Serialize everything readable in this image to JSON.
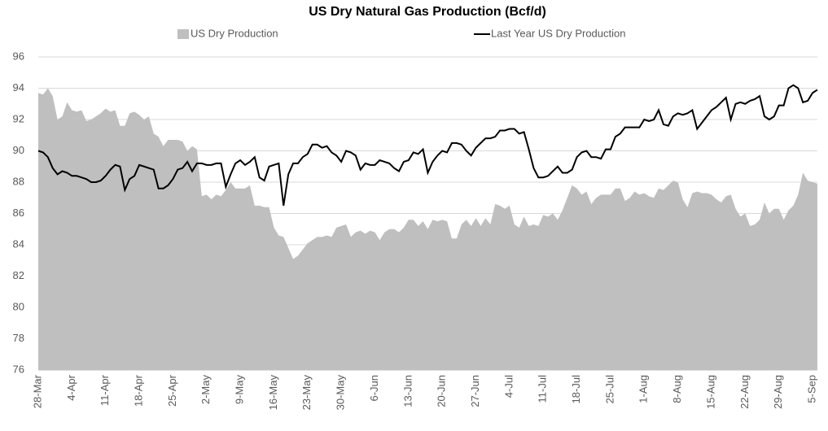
{
  "chart_data": {
    "type": "area-line",
    "title": "US Dry Natural Gas Production (Bcf/d)",
    "categories": [
      "28-Mar",
      null,
      null,
      null,
      null,
      null,
      null,
      "4-Apr",
      null,
      null,
      null,
      null,
      null,
      null,
      "11-Apr",
      null,
      null,
      null,
      null,
      null,
      null,
      "18-Apr",
      null,
      null,
      null,
      null,
      null,
      null,
      "25-Apr",
      null,
      null,
      null,
      null,
      null,
      null,
      "2-May",
      null,
      null,
      null,
      null,
      null,
      null,
      "9-May",
      null,
      null,
      null,
      null,
      null,
      null,
      "16-May",
      null,
      null,
      null,
      null,
      null,
      null,
      "23-May",
      null,
      null,
      null,
      null,
      null,
      null,
      "30-May",
      null,
      null,
      null,
      null,
      null,
      null,
      "6-Jun",
      null,
      null,
      null,
      null,
      null,
      null,
      "13-Jun",
      null,
      null,
      null,
      null,
      null,
      null,
      "20-Jun",
      null,
      null,
      null,
      null,
      null,
      null,
      "27-Jun",
      null,
      null,
      null,
      null,
      null,
      null,
      "4-Jul",
      null,
      null,
      null,
      null,
      null,
      null,
      "11-Jul",
      null,
      null,
      null,
      null,
      null,
      null,
      "18-Jul",
      null,
      null,
      null,
      null,
      null,
      null,
      "25-Jul",
      null,
      null,
      null,
      null,
      null,
      null,
      "1-Aug",
      null,
      null,
      null,
      null,
      null,
      null,
      "8-Aug",
      null,
      null,
      null,
      null,
      null,
      null,
      "15-Aug",
      null,
      null,
      null,
      null,
      null,
      null,
      "22-Aug",
      null,
      null,
      null,
      null,
      null,
      null,
      "29-Aug",
      null,
      null,
      null,
      null,
      null,
      null,
      "5-Sep",
      null
    ],
    "series": [
      {
        "name": "US Dry Production",
        "kind": "area",
        "color": "#bfbfbf",
        "values": [
          93.7,
          93.6,
          94.0,
          93.5,
          92.0,
          92.2,
          93.1,
          92.6,
          92.5,
          92.6,
          91.9,
          92.0,
          92.2,
          92.4,
          92.7,
          92.5,
          92.6,
          91.6,
          91.6,
          92.4,
          92.5,
          92.3,
          92.0,
          92.2,
          91.1,
          90.9,
          90.3,
          90.7,
          90.7,
          90.7,
          90.6,
          90.0,
          90.3,
          90.1,
          87.1,
          87.2,
          86.9,
          87.2,
          87.1,
          87.5,
          88.0,
          87.6,
          87.6,
          87.6,
          87.8,
          86.5,
          86.5,
          86.4,
          86.4,
          85.1,
          84.6,
          84.5,
          83.8,
          83.1,
          83.3,
          83.7,
          84.1,
          84.3,
          84.5,
          84.5,
          84.6,
          84.5,
          85.1,
          85.2,
          85.3,
          84.5,
          84.8,
          84.9,
          84.7,
          84.9,
          84.8,
          84.3,
          84.8,
          85.0,
          85.0,
          84.8,
          85.1,
          85.6,
          85.6,
          85.2,
          85.5,
          85.0,
          85.6,
          85.5,
          85.6,
          85.5,
          84.4,
          84.4,
          85.3,
          85.6,
          85.2,
          85.7,
          85.2,
          85.7,
          85.3,
          86.6,
          86.5,
          86.3,
          86.5,
          85.3,
          85.1,
          85.8,
          85.2,
          85.3,
          85.2,
          85.9,
          85.8,
          86.0,
          85.6,
          86.2,
          87.0,
          87.8,
          87.6,
          87.2,
          87.4,
          86.6,
          87.0,
          87.2,
          87.2,
          87.2,
          87.6,
          87.6,
          86.8,
          87.0,
          87.4,
          87.2,
          87.3,
          87.1,
          87.0,
          87.6,
          87.5,
          87.8,
          88.1,
          88.0,
          86.9,
          86.4,
          87.3,
          87.4,
          87.3,
          87.3,
          87.2,
          86.9,
          86.7,
          87.1,
          87.2,
          86.3,
          85.8,
          86.0,
          85.2,
          85.3,
          85.6,
          86.7,
          86.0,
          86.3,
          86.3,
          85.6,
          86.2,
          86.5,
          87.2,
          88.6,
          88.1,
          88.0,
          87.9
        ]
      },
      {
        "name": "Last Year US Dry Production",
        "kind": "line",
        "color": "#000000",
        "values": [
          90.0,
          89.9,
          89.6,
          88.9,
          88.5,
          88.7,
          88.6,
          88.4,
          88.4,
          88.3,
          88.2,
          88.0,
          88.0,
          88.1,
          88.4,
          88.8,
          89.1,
          89.0,
          87.5,
          88.2,
          88.4,
          89.1,
          89.0,
          88.9,
          88.8,
          87.6,
          87.6,
          87.8,
          88.2,
          88.8,
          88.9,
          89.3,
          88.7,
          89.2,
          89.2,
          89.1,
          89.1,
          89.2,
          89.2,
          87.7,
          88.5,
          89.2,
          89.4,
          89.1,
          89.3,
          89.6,
          88.3,
          88.1,
          89.0,
          89.1,
          89.2,
          86.5,
          88.5,
          89.2,
          89.2,
          89.6,
          89.8,
          90.4,
          90.4,
          90.2,
          90.3,
          89.9,
          89.7,
          89.3,
          90.0,
          89.9,
          89.7,
          88.8,
          89.2,
          89.1,
          89.1,
          89.4,
          89.3,
          89.2,
          88.9,
          88.7,
          89.3,
          89.4,
          89.9,
          89.8,
          90.1,
          88.6,
          89.3,
          89.7,
          90.0,
          89.9,
          90.5,
          90.5,
          90.4,
          90.0,
          89.7,
          90.2,
          90.5,
          90.8,
          90.8,
          90.9,
          91.3,
          91.3,
          91.4,
          91.4,
          91.1,
          91.2,
          90.1,
          88.9,
          88.3,
          88.3,
          88.4,
          88.7,
          89.0,
          88.6,
          88.6,
          88.8,
          89.6,
          89.9,
          90.0,
          89.6,
          89.6,
          89.5,
          90.1,
          90.1,
          90.9,
          91.1,
          91.5,
          91.5,
          91.5,
          91.5,
          92.0,
          91.9,
          92.0,
          92.6,
          91.7,
          91.6,
          92.2,
          92.4,
          92.3,
          92.4,
          92.6,
          91.4,
          91.8,
          92.2,
          92.6,
          92.8,
          93.1,
          93.4,
          92.0,
          93.0,
          93.1,
          93.0,
          93.2,
          93.3,
          93.5,
          92.2,
          92.0,
          92.2,
          92.9,
          92.9,
          94.0,
          94.2,
          94.0,
          93.1,
          93.2,
          93.7,
          93.9
        ]
      }
    ],
    "ylim": [
      76,
      96
    ],
    "yticks": [
      76,
      78,
      80,
      82,
      84,
      86,
      88,
      90,
      92,
      94,
      96
    ],
    "grid": true,
    "legend": "top"
  }
}
